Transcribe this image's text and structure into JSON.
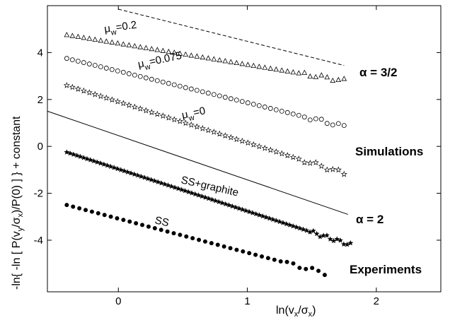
{
  "chart_data": {
    "type": "scatter",
    "xlabel": "ln(v_x/σ_x)",
    "ylabel": "-ln{ -ln [ P(v_y/σ_x)/P(0) ] } + constant",
    "xlim": [
      -0.55,
      2.5
    ],
    "ylim": [
      -6.2,
      6.0
    ],
    "x_ticks": [
      0,
      1,
      2
    ],
    "y_ticks": [
      -4,
      -2,
      0,
      2,
      4
    ],
    "grid": false,
    "series": [
      {
        "name": "μw=0.2",
        "marker": "triangle",
        "x_start": -0.4,
        "x_end": 1.75,
        "count": 50,
        "y_start": 4.75,
        "y_end": 2.8
      },
      {
        "name": "μw=0.075",
        "marker": "circle",
        "x_start": -0.4,
        "x_end": 1.75,
        "count": 50,
        "y_start": 3.75,
        "y_end": 0.85
      },
      {
        "name": "μw=0",
        "marker": "star-open",
        "x_start": -0.4,
        "x_end": 1.75,
        "count": 50,
        "y_start": 2.6,
        "y_end": -1.15
      },
      {
        "name": "SS+graphite",
        "marker": "star-filled",
        "x_start": -0.4,
        "x_end": 1.8,
        "count": 85,
        "y_start": -0.25,
        "y_end": -4.2
      },
      {
        "name": "SS",
        "marker": "dot",
        "x_start": -0.4,
        "x_end": 1.6,
        "count": 42,
        "y_start": -2.5,
        "y_end": -5.4
      }
    ],
    "reference_lines": [
      {
        "name": "α = 3/2",
        "style": "dashed",
        "x": [
          0.0,
          1.75
        ],
        "y": [
          5.85,
          3.45
        ]
      },
      {
        "name": "α = 2",
        "style": "solid",
        "x": [
          -0.55,
          1.78
        ],
        "y": [
          1.5,
          -2.9
        ]
      }
    ],
    "annotations": {
      "mu02": {
        "base": "μ",
        "sub": "w",
        "rest": "=0.2"
      },
      "mu0075": {
        "base": "μ",
        "sub": "w",
        "rest": "=0.075"
      },
      "mu0": {
        "base": "μ",
        "sub": "w",
        "rest": "=0"
      },
      "ssgraphite": "SS+graphite",
      "ss": "SS",
      "alpha32": "α = 3/2",
      "alpha2": "α = 2",
      "simulations": "Simulations",
      "experiments": "Experiments"
    }
  }
}
